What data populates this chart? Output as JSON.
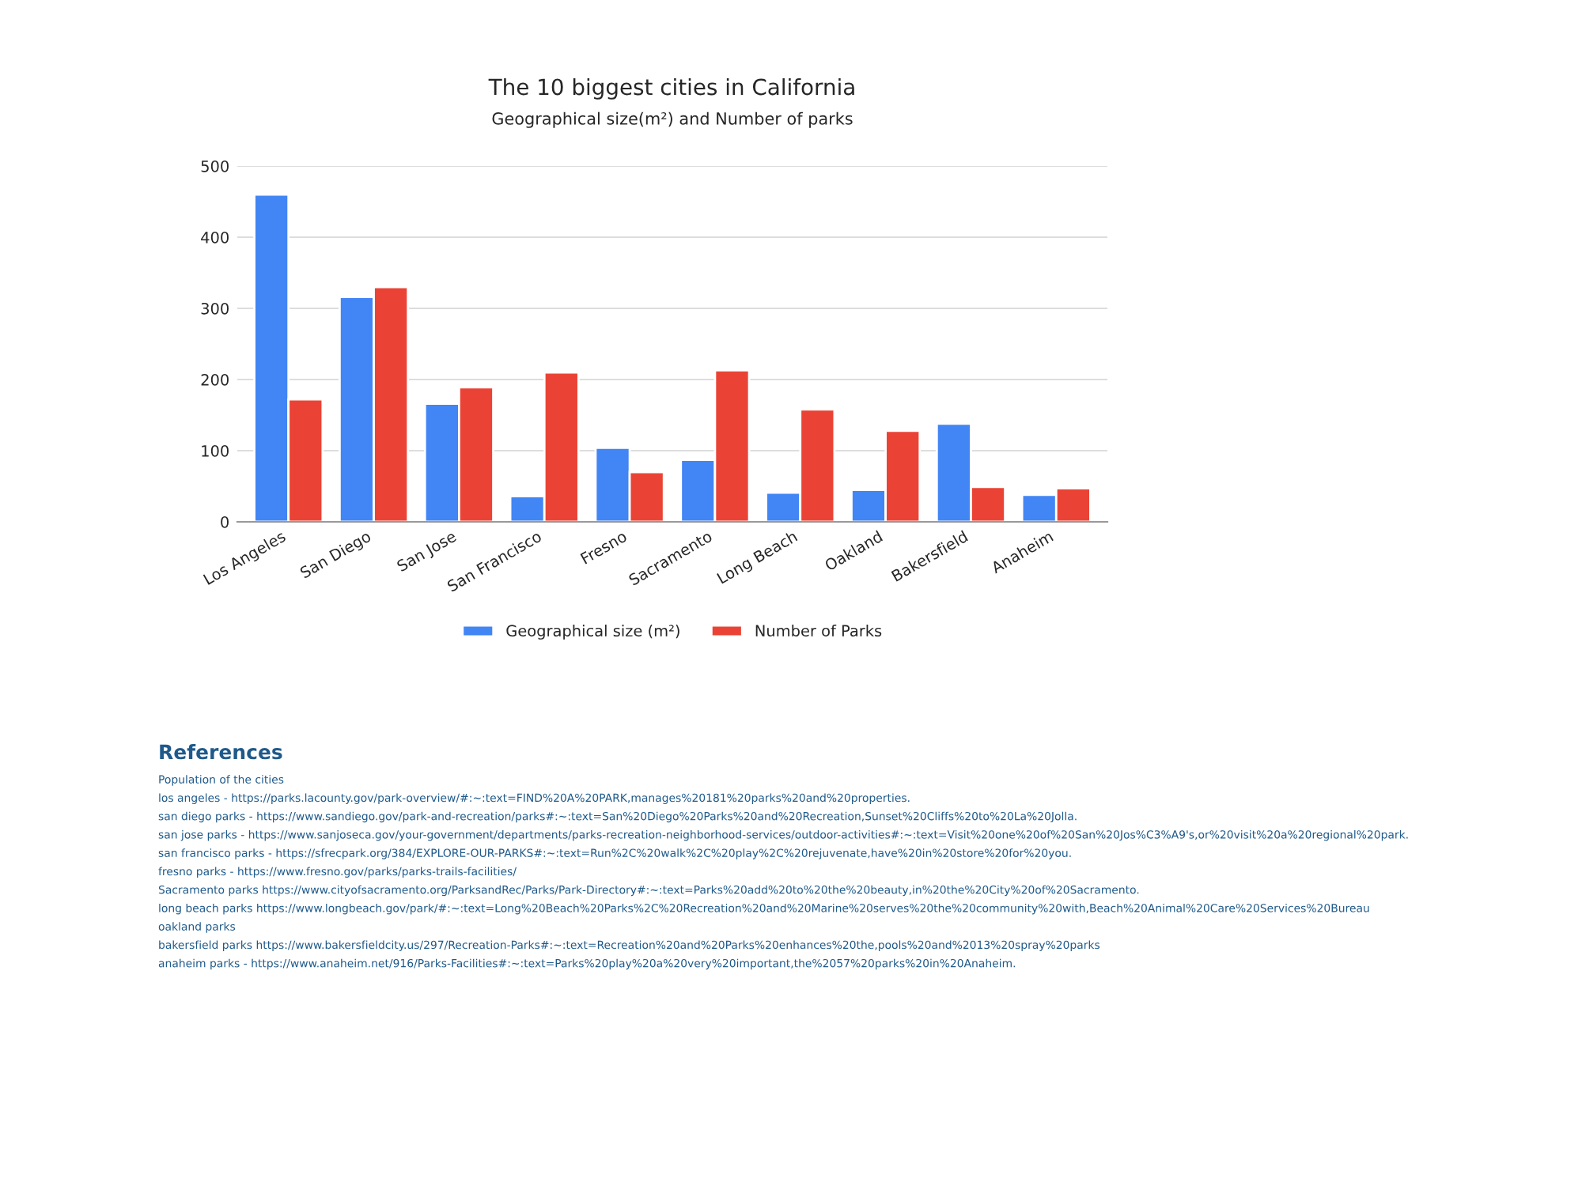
{
  "chart_data": {
    "type": "bar",
    "title": "The 10 biggest cities in California",
    "subtitle": "Geographical size(m²) and Number of parks",
    "categories": [
      "Los Angeles",
      "San Diego",
      "San Jose",
      "San Francisco",
      "Fresno",
      "Sacramento",
      "Long Beach",
      "Oakland",
      "Bakersfield",
      "Anaheim"
    ],
    "series": [
      {
        "name": "Geographical size (m²)",
        "color": "#4285f4",
        "values": [
          460,
          316,
          166,
          36,
          104,
          87,
          41,
          45,
          138,
          38
        ]
      },
      {
        "name": "Number of Parks",
        "color": "#ea4335",
        "values": [
          172,
          330,
          189,
          210,
          70,
          213,
          158,
          128,
          49,
          47
        ]
      }
    ],
    "ylim": [
      0,
      500
    ],
    "yticks": [
      0,
      100,
      200,
      300,
      400,
      500
    ],
    "grid": "y",
    "legend": "bottom",
    "annotations": [
      "References",
      "Population of the cities",
      "los angeles - https://parks.lacounty.gov/park-overview/#:~:text=FIND%20A%20PARK,manages%20181%20parks%20and%20properties.",
      "san diego parks - https://www.sandiego.gov/park-and-recreation/parks#:~:text=San%20Diego%20Parks%20and%20Recreation,Sunset%20Cliffs%20to%20La%20Jolla.",
      "san jose parks - https://www.sanjoseca.gov/your-government/departments/parks-recreation-neighborhood-services/outdoor-activities#:~:text=Visit%20one%20of%20San%20Jos%C3%A9's,or%20visit%20a%20regional%20park.",
      "san francisco parks - https://sfrecpark.org/384/EXPLORE-OUR-PARKS#:~:text=Run%2C%20walk%2C%20play%2C%20rejuvenate,have%20in%20store%20for%20you.",
      "fresno parks - https://www.fresno.gov/parks/parks-trails-facilities/",
      "Sacramento parks https://www.cityofsacramento.org/ParksandRec/Parks/Park-Directory#:~:text=Parks%20add%20to%20the%20beauty,in%20the%20City%20of%20Sacramento.",
      "long beach parks https://www.longbeach.gov/park/#:~:text=Long%20Beach%20Parks%2C%20Recreation%20and%20Marine%20serves%20the%20community%20with,Beach%20Animal%20Care%20Services%20Bureau",
      "oakland parks",
      "bakersfield parks https://www.bakersfieldcity.us/297/Recreation-Parks#:~:text=Recreation%20and%20Parks%20enhances%20the,pools%20and%2013%20spray%20parks",
      "anaheim parks - https://www.anaheim.net/916/Parks-Facilities#:~:text=Parks%20play%20a%20very%20important,the%2057%20parks%20in%20Anaheim."
    ]
  }
}
